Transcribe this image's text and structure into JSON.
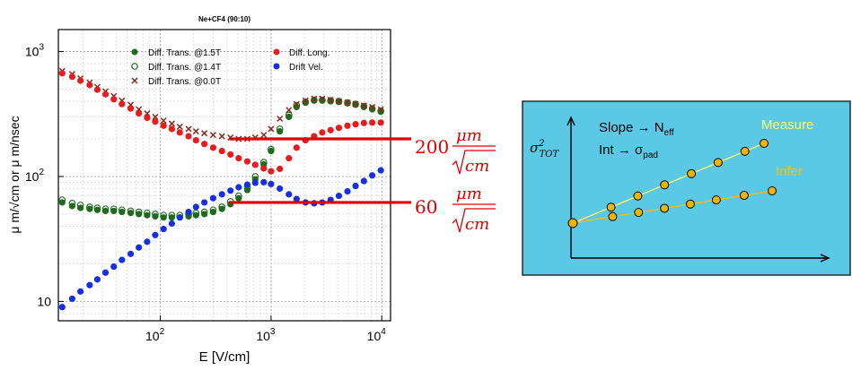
{
  "chart_data": {
    "type": "scatter",
    "title": "Ne+CF4 (90:10)",
    "xlabel": "E [V/cm]",
    "ylabel": "μ m/√cm or μ m/nsec",
    "xscale": "log",
    "yscale": "log",
    "xlim": [
      12,
      12000
    ],
    "ylim": [
      7,
      1500
    ],
    "xticks": [
      {
        "value": 100,
        "base": "10",
        "exp": "2"
      },
      {
        "value": 1000,
        "base": "10",
        "exp": "3"
      },
      {
        "value": 10000,
        "base": "10",
        "exp": "4"
      }
    ],
    "yticks": [
      {
        "value": 10,
        "base": "10",
        "exp": ""
      },
      {
        "value": 100,
        "base": "10",
        "exp": "2"
      },
      {
        "value": 1000,
        "base": "10",
        "exp": "3"
      }
    ],
    "grid": true,
    "legend_position": "top",
    "series": [
      {
        "name": "Diff. Trans. @1.5T",
        "color": "#1e6b1e",
        "marker": "filled-circle",
        "x": [
          13,
          16,
          19,
          23,
          27,
          32,
          38,
          45,
          54,
          64,
          76,
          90,
          107,
          127,
          150,
          180,
          210,
          250,
          300,
          360,
          430,
          510,
          610,
          720,
          860,
          1000,
          1200,
          1450,
          1700,
          2050,
          2450,
          2900,
          3450,
          4100,
          4900,
          5800,
          6900,
          8200,
          9800
        ],
        "y": [
          62,
          58,
          56,
          55,
          54,
          53,
          53,
          52,
          51,
          50,
          49,
          48,
          47,
          47,
          47,
          48,
          49,
          50,
          52,
          55,
          60,
          67,
          78,
          95,
          125,
          160,
          230,
          300,
          360,
          390,
          405,
          405,
          400,
          395,
          385,
          375,
          360,
          345,
          330
        ]
      },
      {
        "name": "Diff. Trans. @1.4T",
        "color": "#1e6b1e",
        "marker": "open-circle",
        "x": [
          13,
          16,
          19,
          23,
          27,
          32,
          38,
          45,
          54,
          64,
          76,
          90,
          107,
          127,
          150,
          180,
          210,
          250,
          300,
          360,
          430,
          510,
          610,
          720,
          860,
          1000,
          1200,
          1450,
          1700,
          2050,
          2450,
          2900,
          3450,
          4100,
          4900,
          5800,
          6900,
          8200,
          9800
        ],
        "y": [
          65,
          61,
          59,
          57,
          56,
          55,
          55,
          54,
          53,
          52,
          51,
          50,
          49,
          49,
          49,
          50,
          51,
          52,
          54,
          57,
          63,
          70,
          82,
          100,
          130,
          165,
          240,
          310,
          370,
          395,
          410,
          410,
          405,
          400,
          390,
          380,
          365,
          350,
          335
        ]
      },
      {
        "name": "Diff. Trans. @0.0T",
        "color": "#8b2a1e",
        "marker": "cross",
        "x": [
          13,
          16,
          19,
          23,
          27,
          32,
          38,
          45,
          54,
          64,
          76,
          90,
          107,
          127,
          150,
          180,
          210,
          250,
          300,
          360,
          430,
          510,
          610,
          720,
          860,
          1000,
          1200,
          1450,
          1700,
          2050,
          2450,
          2900,
          3450,
          4100,
          4900,
          5800,
          6900,
          8200,
          9800
        ],
        "y": [
          700,
          660,
          610,
          565,
          520,
          480,
          440,
          405,
          375,
          345,
          320,
          300,
          280,
          265,
          250,
          240,
          230,
          222,
          215,
          210,
          205,
          200,
          200,
          205,
          215,
          240,
          290,
          340,
          380,
          405,
          420,
          420,
          410,
          400,
          390,
          380,
          370,
          360,
          345
        ]
      },
      {
        "name": "Diff. Long.",
        "color": "#e81c1c",
        "marker": "filled-circle",
        "x": [
          13,
          16,
          19,
          23,
          27,
          32,
          38,
          45,
          54,
          64,
          76,
          90,
          107,
          127,
          150,
          180,
          210,
          250,
          300,
          360,
          430,
          510,
          610,
          720,
          860,
          1000,
          1200,
          1450,
          1700,
          2050,
          2450,
          2900,
          3450,
          4100,
          4900,
          5800,
          6900,
          8200,
          9800
        ],
        "y": [
          670,
          630,
          585,
          540,
          495,
          455,
          415,
          380,
          350,
          320,
          295,
          275,
          255,
          240,
          225,
          210,
          195,
          182,
          170,
          160,
          150,
          140,
          132,
          124,
          116,
          110,
          115,
          140,
          170,
          195,
          210,
          225,
          235,
          245,
          255,
          262,
          268,
          270,
          270
        ]
      },
      {
        "name": "Drift Vel.",
        "color": "#1530e0",
        "marker": "filled-circle",
        "x": [
          13,
          16,
          19,
          23,
          27,
          32,
          38,
          45,
          54,
          64,
          76,
          90,
          107,
          127,
          150,
          180,
          210,
          250,
          300,
          360,
          430,
          510,
          610,
          720,
          860,
          1000,
          1200,
          1450,
          1700,
          2050,
          2450,
          2900,
          3450,
          4100,
          4900,
          5800,
          6900,
          8200,
          9800
        ],
        "y": [
          9,
          10.5,
          12,
          13.5,
          15,
          17,
          19,
          21.5,
          24,
          27,
          30,
          34,
          38,
          42,
          47,
          52,
          57,
          62,
          67,
          72,
          77,
          82,
          86,
          89,
          90,
          87,
          80,
          72,
          66,
          62,
          61,
          62,
          65,
          70,
          76,
          84,
          92,
          102,
          112
        ]
      }
    ],
    "annotations": [
      {
        "value": "200",
        "unit_numerator": "μm",
        "unit_denominator": "cm",
        "at_y": 200
      },
      {
        "value": "60",
        "unit_numerator": "μm",
        "unit_denominator": "cm",
        "at_y": 62
      }
    ],
    "colors": {
      "annotation": "#e00000"
    }
  },
  "diagram": {
    "background_color": "#5bc8e6",
    "ylabel_base": "σ",
    "ylabel_sup": "2",
    "ylabel_sub": "TOT",
    "line1": {
      "a": "Slope → N",
      "sub": "eff"
    },
    "line2": {
      "a": "Int → σ",
      "sub": "pad"
    },
    "measure_label": "Measure",
    "infer_label": "Infer",
    "colors": {
      "measure": "#ffff66",
      "infer": "#ffc000",
      "points": "#f0b400"
    }
  }
}
